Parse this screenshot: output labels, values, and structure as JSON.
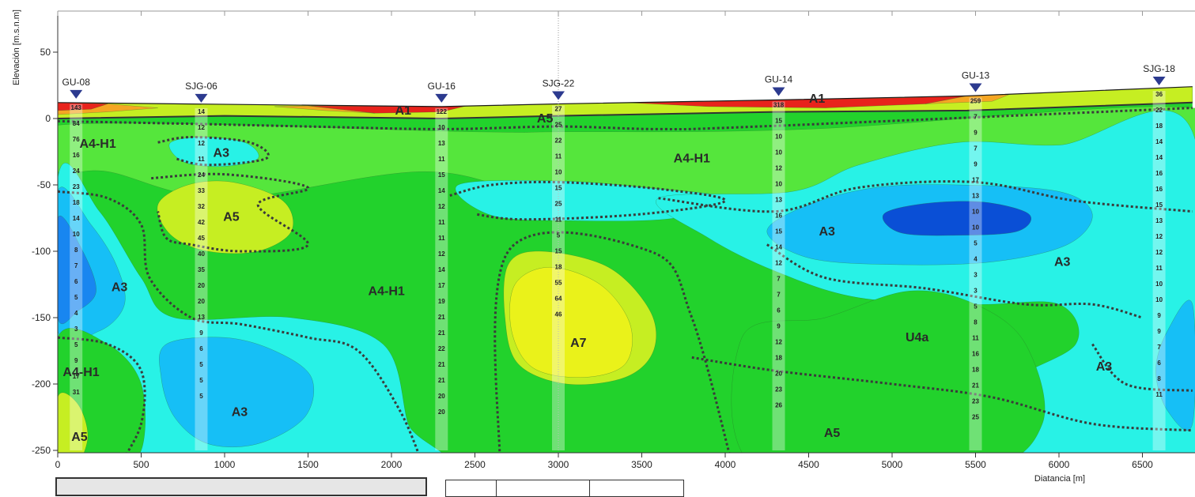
{
  "chart_data": {
    "type": "heatmap",
    "xlabel": "Diatancia [m]",
    "ylabel": "Elevación [m.s.n.m]",
    "xlim": [
      0,
      6800
    ],
    "ylim": [
      -250,
      80
    ],
    "x_ticks": [
      0,
      500,
      1000,
      1500,
      2000,
      2500,
      3000,
      3500,
      4000,
      4500,
      5000,
      5500,
      6000,
      6500
    ],
    "y_ticks": [
      50,
      0,
      -50,
      -100,
      -150,
      -200,
      -250
    ],
    "surface_profile": [
      [
        0,
        12
      ],
      [
        2300,
        9
      ],
      [
        3000,
        11
      ],
      [
        4300,
        14
      ],
      [
        5450,
        17
      ],
      [
        6800,
        24
      ]
    ],
    "boreholes": [
      {
        "name": "GU-08",
        "x": 110,
        "top": 12,
        "nspt": [
          "143",
          "84",
          "76",
          "16",
          "24",
          "23",
          "18",
          "14",
          "10",
          "8",
          "7",
          "6",
          "5",
          "4",
          "3",
          "5",
          "9",
          "17",
          "31"
        ]
      },
      {
        "name": "SJG-06",
        "x": 860,
        "top": 9,
        "nspt": [
          "14",
          "12",
          "12",
          "11",
          "24",
          "33",
          "32",
          "42",
          "45",
          "40",
          "35",
          "20",
          "20",
          "13",
          "9",
          "6",
          "5",
          "5",
          "5"
        ]
      },
      {
        "name": "GU-16",
        "x": 2300,
        "top": 9,
        "nspt": [
          "122",
          "10",
          "13",
          "11",
          "15",
          "14",
          "12",
          "11",
          "11",
          "12",
          "14",
          "17",
          "19",
          "21",
          "21",
          "22",
          "21",
          "21",
          "20",
          "20"
        ]
      },
      {
        "name": "SJG-22",
        "x": 3000,
        "top": 11,
        "nspt": [
          "27",
          "25",
          "22",
          "11",
          "10",
          "15",
          "25",
          "11",
          "5",
          "15",
          "18",
          "55",
          "64",
          "46"
        ]
      },
      {
        "name": "GU-14",
        "x": 4320,
        "top": 14,
        "nspt": [
          "318",
          "15",
          "10",
          "10",
          "12",
          "10",
          "13",
          "16",
          "15",
          "14",
          "12",
          "7",
          "7",
          "6",
          "9",
          "12",
          "18",
          "20",
          "23",
          "26"
        ]
      },
      {
        "name": "GU-13",
        "x": 5500,
        "top": 17,
        "nspt": [
          "259",
          "7",
          "9",
          "7",
          "9",
          "17",
          "13",
          "10",
          "10",
          "5",
          "4",
          "3",
          "3",
          "5",
          "8",
          "11",
          "16",
          "18",
          "21",
          "23",
          "25"
        ]
      },
      {
        "name": "SJG-18",
        "x": 6600,
        "top": 22,
        "nspt": [
          "36",
          "22",
          "18",
          "14",
          "14",
          "16",
          "16",
          "15",
          "13",
          "12",
          "12",
          "11",
          "10",
          "10",
          "9",
          "9",
          "7",
          "6",
          "8",
          "11"
        ]
      }
    ],
    "units": [
      {
        "label": "A1",
        "x": 2070,
        "y": 3
      },
      {
        "label": "A1",
        "x": 4550,
        "y": 12
      },
      {
        "label": "A5",
        "x": 2920,
        "y": -3
      },
      {
        "label": "A4-H1",
        "x": 240,
        "y": -22
      },
      {
        "label": "A3",
        "x": 980,
        "y": -29
      },
      {
        "label": "A4-H1",
        "x": 3800,
        "y": -33
      },
      {
        "label": "A5",
        "x": 1040,
        "y": -77
      },
      {
        "label": "A3",
        "x": 4610,
        "y": -88
      },
      {
        "label": "A3",
        "x": 6020,
        "y": -111
      },
      {
        "label": "A3",
        "x": 370,
        "y": -130
      },
      {
        "label": "A4-H1",
        "x": 1970,
        "y": -133
      },
      {
        "label": "A7",
        "x": 3120,
        "y": -172
      },
      {
        "label": "U4a",
        "x": 5150,
        "y": -168
      },
      {
        "label": "A3",
        "x": 6270,
        "y": -190
      },
      {
        "label": "A4-H1",
        "x": 140,
        "y": -194
      },
      {
        "label": "A3",
        "x": 1090,
        "y": -224
      },
      {
        "label": "A5",
        "x": 130,
        "y": -243
      },
      {
        "label": "A5",
        "x": 4640,
        "y": -240
      }
    ],
    "colors": {
      "red": "#e8231c",
      "orange": "#f5a623",
      "yellow": "#eaf21a",
      "yellow_green": "#c6ee22",
      "green": "#22d22c",
      "light_green": "#55e63c",
      "cyan": "#28f2e6",
      "light_blue": "#16bff6",
      "blue": "#1886f0",
      "dark_blue": "#0a4fd6"
    }
  }
}
